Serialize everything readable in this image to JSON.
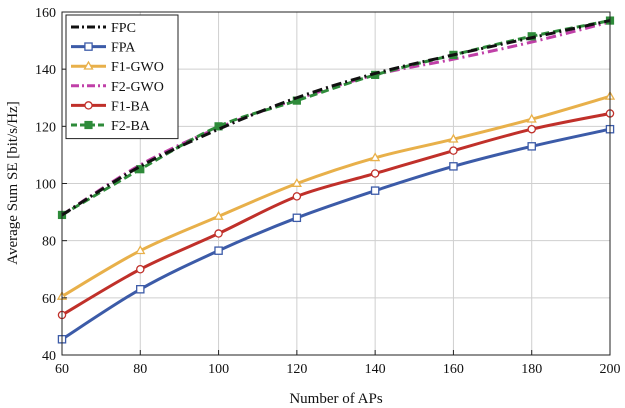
{
  "chart_data": {
    "type": "line",
    "title": "",
    "xlabel": "Number of APs",
    "ylabel": "Average Sum SE [bit/s/Hz]",
    "xlim": [
      60,
      200
    ],
    "ylim": [
      40,
      160
    ],
    "xticks": [
      60,
      80,
      100,
      120,
      140,
      160,
      180,
      200
    ],
    "yticks": [
      40,
      60,
      80,
      100,
      120,
      140,
      160
    ],
    "xtick_labels": [
      "60",
      "80",
      "100",
      "120",
      "140",
      "160",
      "180",
      "200"
    ],
    "ytick_labels": [
      "40",
      "60",
      "80",
      "100",
      "120",
      "140",
      "160"
    ],
    "grid": true,
    "legend_position": "top-left",
    "x": [
      60,
      80,
      100,
      120,
      140,
      160,
      180,
      200
    ],
    "series": [
      {
        "name": "FPC",
        "color": "#111111",
        "dash": "dashdot",
        "marker": "none",
        "values": [
          89.0,
          106.0,
          119.0,
          130.0,
          138.5,
          145.0,
          151.0,
          157.0
        ]
      },
      {
        "name": "FPA",
        "color": "#3c5ba8",
        "dash": "solid",
        "marker": "square-open",
        "values": [
          45.5,
          63.0,
          76.5,
          88.0,
          97.5,
          106.0,
          113.0,
          119.0
        ]
      },
      {
        "name": "F1-GWO",
        "color": "#e8b04a",
        "dash": "solid",
        "marker": "triangle-open",
        "values": [
          60.5,
          76.5,
          88.5,
          100.0,
          109.0,
          115.5,
          122.5,
          130.5
        ]
      },
      {
        "name": "F2-GWO",
        "color": "#c040a8",
        "dash": "dashdot",
        "marker": "none",
        "values": [
          89.0,
          106.5,
          119.5,
          129.5,
          138.0,
          143.5,
          149.5,
          156.5
        ]
      },
      {
        "name": "F1-BA",
        "color": "#c0302a",
        "dash": "solid",
        "marker": "circle-open",
        "values": [
          54.0,
          70.0,
          82.5,
          95.5,
          103.5,
          111.5,
          119.0,
          124.5
        ]
      },
      {
        "name": "F2-BA",
        "color": "#2e8b3a",
        "dash": "dashed",
        "marker": "square-filled",
        "values": [
          89.0,
          105.0,
          120.0,
          129.0,
          138.0,
          145.0,
          151.5,
          157.0
        ]
      }
    ]
  }
}
